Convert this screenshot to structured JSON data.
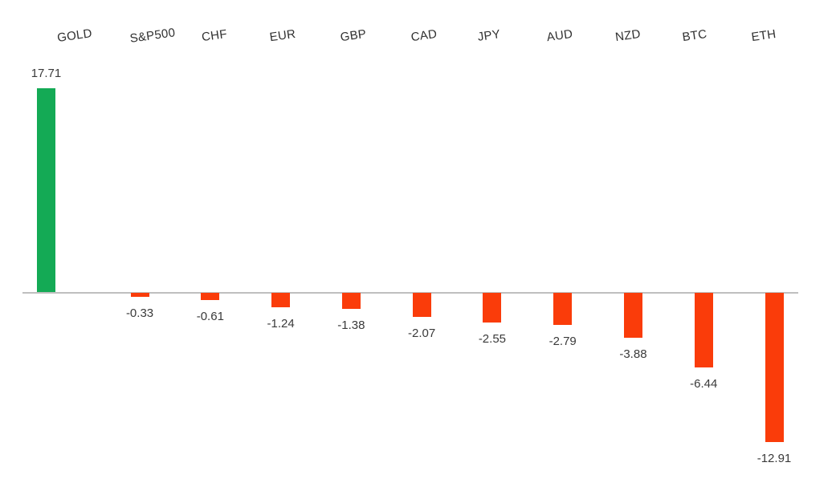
{
  "chart_data": {
    "type": "bar",
    "title": "",
    "xlabel": "",
    "ylabel": "",
    "categories": [
      "GOLD",
      "S&P500",
      "CHF",
      "EUR",
      "GBP",
      "CAD",
      "JPY",
      "AUD",
      "NZD",
      "BTC",
      "ETH"
    ],
    "values": [
      17.71,
      -0.33,
      -0.61,
      -1.24,
      -1.38,
      -2.07,
      -2.55,
      -2.79,
      -3.88,
      -6.44,
      -12.91
    ],
    "value_labels": [
      "17.71",
      "-0.33",
      "-0.61",
      "-1.24",
      "-1.38",
      "-2.07",
      "-2.55",
      "-2.79",
      "-3.88",
      "-6.44",
      "-12.91"
    ],
    "ylim": [
      -14,
      19
    ],
    "grid": false,
    "legend_position": "none",
    "colors": {
      "positive_bar": "#14aa55",
      "negative_bar": "#fa3c0a",
      "axis_line": "#bfbfbf",
      "category_label_text": "#303030",
      "value_label_text": "#3a3a3a",
      "background": "#ffffff"
    }
  }
}
